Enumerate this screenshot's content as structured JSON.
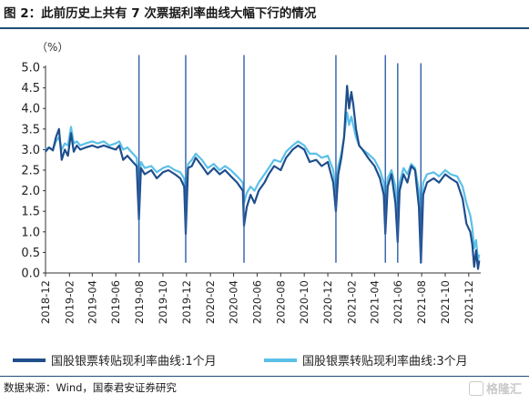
{
  "figure": {
    "title": "图 2：此前历史上共有 7 次票据利率曲线大幅下行的情况",
    "source": "数据来源：Wind，国泰君安证券研究",
    "watermark": "格隆汇"
  },
  "colors": {
    "series_1m": "#1f4e8c",
    "series_3m": "#5bc0e8",
    "markers": "#2e5fa8",
    "axis": "#333333",
    "rule": "#1f4e79"
  },
  "chart_data": {
    "type": "line",
    "unit_label": "（%）",
    "ylim": [
      0.0,
      5.0
    ],
    "y_ticks": [
      "5.0",
      "4.5",
      "4.0",
      "3.5",
      "3.0",
      "2.5",
      "2.0",
      "1.5",
      "1.0",
      "0.5",
      "0.0"
    ],
    "x_ticks": [
      "2018-12",
      "2019-02",
      "2019-04",
      "2019-06",
      "2019-08",
      "2019-10",
      "2019-12",
      "2020-02",
      "2020-04",
      "2020-06",
      "2020-08",
      "2020-10",
      "2020-12",
      "2021-02",
      "2021-04",
      "2021-06",
      "2021-08",
      "2021-10",
      "2021-12"
    ],
    "x_start": "2018-12",
    "x_end": "2022-01",
    "grid": false,
    "legend_position": "bottom",
    "series": [
      {
        "name": "国股银票转贴现利率曲线:1个月",
        "key": "series_1m",
        "points": [
          [
            "2018-12-01",
            2.95
          ],
          [
            "2018-12-10",
            3.05
          ],
          [
            "2018-12-20",
            2.98
          ],
          [
            "2018-12-28",
            3.3
          ],
          [
            "2019-01-05",
            3.5
          ],
          [
            "2019-01-12",
            2.75
          ],
          [
            "2019-01-20",
            3.0
          ],
          [
            "2019-01-28",
            2.85
          ],
          [
            "2019-02-05",
            3.4
          ],
          [
            "2019-02-12",
            2.95
          ],
          [
            "2019-02-20",
            3.1
          ],
          [
            "2019-03-01",
            3.0
          ],
          [
            "2019-03-15",
            3.05
          ],
          [
            "2019-04-01",
            3.1
          ],
          [
            "2019-04-15",
            3.05
          ],
          [
            "2019-05-01",
            3.1
          ],
          [
            "2019-05-15",
            3.05
          ],
          [
            "2019-06-01",
            3.0
          ],
          [
            "2019-06-10",
            3.1
          ],
          [
            "2019-06-20",
            2.75
          ],
          [
            "2019-07-01",
            2.85
          ],
          [
            "2019-07-15",
            2.7
          ],
          [
            "2019-07-25",
            2.6
          ],
          [
            "2019-07-31",
            1.3
          ],
          [
            "2019-08-05",
            2.55
          ],
          [
            "2019-08-15",
            2.4
          ],
          [
            "2019-09-01",
            2.5
          ],
          [
            "2019-09-15",
            2.3
          ],
          [
            "2019-10-01",
            2.45
          ],
          [
            "2019-10-15",
            2.5
          ],
          [
            "2019-11-01",
            2.4
          ],
          [
            "2019-11-15",
            2.3
          ],
          [
            "2019-11-25",
            2.1
          ],
          [
            "2019-11-29",
            0.95
          ],
          [
            "2019-12-05",
            2.55
          ],
          [
            "2019-12-15",
            2.6
          ],
          [
            "2019-12-25",
            2.8
          ],
          [
            "2020-01-10",
            2.6
          ],
          [
            "2020-01-25",
            2.4
          ],
          [
            "2020-02-10",
            2.55
          ],
          [
            "2020-02-25",
            2.4
          ],
          [
            "2020-03-10",
            2.5
          ],
          [
            "2020-03-25",
            2.35
          ],
          [
            "2020-04-10",
            2.2
          ],
          [
            "2020-04-25",
            2.0
          ],
          [
            "2020-04-28",
            1.15
          ],
          [
            "2020-05-05",
            1.6
          ],
          [
            "2020-05-15",
            1.9
          ],
          [
            "2020-05-25",
            1.7
          ],
          [
            "2020-06-05",
            2.0
          ],
          [
            "2020-06-20",
            2.2
          ],
          [
            "2020-07-01",
            2.4
          ],
          [
            "2020-07-15",
            2.6
          ],
          [
            "2020-08-01",
            2.5
          ],
          [
            "2020-08-15",
            2.8
          ],
          [
            "2020-09-01",
            3.0
          ],
          [
            "2020-09-15",
            3.1
          ],
          [
            "2020-10-01",
            3.0
          ],
          [
            "2020-10-15",
            2.7
          ],
          [
            "2020-11-01",
            2.75
          ],
          [
            "2020-11-15",
            2.6
          ],
          [
            "2020-12-01",
            2.7
          ],
          [
            "2020-12-15",
            2.2
          ],
          [
            "2020-12-22",
            1.5
          ],
          [
            "2020-12-28",
            2.4
          ],
          [
            "2021-01-05",
            2.8
          ],
          [
            "2021-01-12",
            3.3
          ],
          [
            "2021-01-20",
            4.55
          ],
          [
            "2021-01-25",
            4.0
          ],
          [
            "2021-01-31",
            4.4
          ],
          [
            "2021-02-05",
            4.1
          ],
          [
            "2021-02-12",
            3.5
          ],
          [
            "2021-02-20",
            3.1
          ],
          [
            "2021-03-01",
            3.0
          ],
          [
            "2021-03-15",
            2.8
          ],
          [
            "2021-04-01",
            2.6
          ],
          [
            "2021-04-15",
            2.3
          ],
          [
            "2021-04-25",
            1.9
          ],
          [
            "2021-04-29",
            0.95
          ],
          [
            "2021-05-05",
            2.1
          ],
          [
            "2021-05-15",
            2.4
          ],
          [
            "2021-05-25",
            1.7
          ],
          [
            "2021-05-31",
            0.75
          ],
          [
            "2021-06-05",
            2.0
          ],
          [
            "2021-06-15",
            2.4
          ],
          [
            "2021-06-25",
            2.2
          ],
          [
            "2021-07-05",
            2.6
          ],
          [
            "2021-07-15",
            2.5
          ],
          [
            "2021-07-25",
            1.6
          ],
          [
            "2021-07-30",
            0.25
          ],
          [
            "2021-08-05",
            1.9
          ],
          [
            "2021-08-15",
            2.2
          ],
          [
            "2021-09-01",
            2.3
          ],
          [
            "2021-09-15",
            2.2
          ],
          [
            "2021-10-01",
            2.4
          ],
          [
            "2021-10-15",
            2.3
          ],
          [
            "2021-11-01",
            2.2
          ],
          [
            "2021-11-15",
            1.8
          ],
          [
            "2021-11-25",
            1.2
          ],
          [
            "2021-12-05",
            1.0
          ],
          [
            "2021-12-10",
            0.7
          ],
          [
            "2021-12-15",
            0.15
          ],
          [
            "2021-12-20",
            0.55
          ],
          [
            "2021-12-25",
            0.1
          ],
          [
            "2021-12-28",
            0.3
          ]
        ]
      },
      {
        "name": "国股银票转贴现利率曲线:3个月",
        "key": "series_3m",
        "points": [
          [
            "2018-12-01",
            3.0
          ],
          [
            "2018-12-10",
            3.05
          ],
          [
            "2018-12-20",
            3.0
          ],
          [
            "2018-12-28",
            3.2
          ],
          [
            "2019-01-05",
            3.3
          ],
          [
            "2019-01-12",
            3.0
          ],
          [
            "2019-01-20",
            3.15
          ],
          [
            "2019-01-28",
            3.1
          ],
          [
            "2019-02-05",
            3.55
          ],
          [
            "2019-02-12",
            3.15
          ],
          [
            "2019-02-20",
            3.2
          ],
          [
            "2019-03-01",
            3.1
          ],
          [
            "2019-03-15",
            3.15
          ],
          [
            "2019-04-01",
            3.2
          ],
          [
            "2019-04-15",
            3.15
          ],
          [
            "2019-05-01",
            3.2
          ],
          [
            "2019-05-15",
            3.1
          ],
          [
            "2019-06-01",
            3.15
          ],
          [
            "2019-06-10",
            3.2
          ],
          [
            "2019-06-20",
            3.0
          ],
          [
            "2019-07-01",
            3.05
          ],
          [
            "2019-07-15",
            2.9
          ],
          [
            "2019-07-25",
            2.8
          ],
          [
            "2019-07-31",
            2.1
          ],
          [
            "2019-08-05",
            2.7
          ],
          [
            "2019-08-15",
            2.55
          ],
          [
            "2019-09-01",
            2.6
          ],
          [
            "2019-09-15",
            2.45
          ],
          [
            "2019-10-01",
            2.55
          ],
          [
            "2019-10-15",
            2.6
          ],
          [
            "2019-11-01",
            2.5
          ],
          [
            "2019-11-15",
            2.45
          ],
          [
            "2019-11-25",
            2.3
          ],
          [
            "2019-11-29",
            1.75
          ],
          [
            "2019-12-05",
            2.65
          ],
          [
            "2019-12-15",
            2.75
          ],
          [
            "2019-12-25",
            2.9
          ],
          [
            "2020-01-10",
            2.75
          ],
          [
            "2020-01-25",
            2.55
          ],
          [
            "2020-02-10",
            2.65
          ],
          [
            "2020-02-25",
            2.5
          ],
          [
            "2020-03-10",
            2.6
          ],
          [
            "2020-03-25",
            2.5
          ],
          [
            "2020-04-10",
            2.35
          ],
          [
            "2020-04-25",
            2.2
          ],
          [
            "2020-04-28",
            1.7
          ],
          [
            "2020-05-05",
            1.95
          ],
          [
            "2020-05-15",
            2.1
          ],
          [
            "2020-05-25",
            2.0
          ],
          [
            "2020-06-05",
            2.2
          ],
          [
            "2020-06-20",
            2.4
          ],
          [
            "2020-07-01",
            2.55
          ],
          [
            "2020-07-15",
            2.75
          ],
          [
            "2020-08-01",
            2.7
          ],
          [
            "2020-08-15",
            2.95
          ],
          [
            "2020-09-01",
            3.1
          ],
          [
            "2020-09-15",
            3.2
          ],
          [
            "2020-10-01",
            3.1
          ],
          [
            "2020-10-15",
            2.9
          ],
          [
            "2020-11-01",
            2.9
          ],
          [
            "2020-11-15",
            2.8
          ],
          [
            "2020-12-01",
            2.85
          ],
          [
            "2020-12-15",
            2.5
          ],
          [
            "2020-12-22",
            2.0
          ],
          [
            "2020-12-28",
            2.6
          ],
          [
            "2021-01-05",
            2.9
          ],
          [
            "2021-01-12",
            3.3
          ],
          [
            "2021-01-20",
            3.9
          ],
          [
            "2021-01-25",
            3.6
          ],
          [
            "2021-01-31",
            3.8
          ],
          [
            "2021-02-05",
            3.6
          ],
          [
            "2021-02-12",
            3.3
          ],
          [
            "2021-02-20",
            3.1
          ],
          [
            "2021-03-01",
            3.0
          ],
          [
            "2021-03-15",
            2.9
          ],
          [
            "2021-04-01",
            2.75
          ],
          [
            "2021-04-15",
            2.5
          ],
          [
            "2021-04-25",
            2.2
          ],
          [
            "2021-04-29",
            1.55
          ],
          [
            "2021-05-05",
            2.3
          ],
          [
            "2021-05-15",
            2.5
          ],
          [
            "2021-05-25",
            2.1
          ],
          [
            "2021-05-31",
            1.5
          ],
          [
            "2021-06-05",
            2.2
          ],
          [
            "2021-06-15",
            2.55
          ],
          [
            "2021-06-25",
            2.4
          ],
          [
            "2021-07-05",
            2.65
          ],
          [
            "2021-07-15",
            2.55
          ],
          [
            "2021-07-25",
            2.0
          ],
          [
            "2021-07-30",
            1.45
          ],
          [
            "2021-08-05",
            2.2
          ],
          [
            "2021-08-15",
            2.4
          ],
          [
            "2021-09-01",
            2.45
          ],
          [
            "2021-09-15",
            2.35
          ],
          [
            "2021-10-01",
            2.5
          ],
          [
            "2021-10-15",
            2.4
          ],
          [
            "2021-11-01",
            2.35
          ],
          [
            "2021-11-15",
            2.1
          ],
          [
            "2021-11-25",
            1.7
          ],
          [
            "2021-12-05",
            1.4
          ],
          [
            "2021-12-10",
            1.1
          ],
          [
            "2021-12-15",
            0.6
          ],
          [
            "2021-12-20",
            0.8
          ],
          [
            "2021-12-25",
            0.3
          ],
          [
            "2021-12-28",
            0.45
          ]
        ]
      }
    ],
    "event_markers": [
      {
        "date": "2019-07-31",
        "from": 0.25,
        "to": 5.3
      },
      {
        "date": "2019-11-29",
        "from": 0.25,
        "to": 5.3
      },
      {
        "date": "2020-04-28",
        "from": 0.25,
        "to": 5.3
      },
      {
        "date": "2020-12-22",
        "from": 0.25,
        "to": 5.3
      },
      {
        "date": "2021-04-29",
        "from": 0.25,
        "to": 5.3
      },
      {
        "date": "2021-05-31",
        "from": 0.25,
        "to": 5.1
      },
      {
        "date": "2021-07-30",
        "from": 0.25,
        "to": 5.1
      }
    ]
  }
}
